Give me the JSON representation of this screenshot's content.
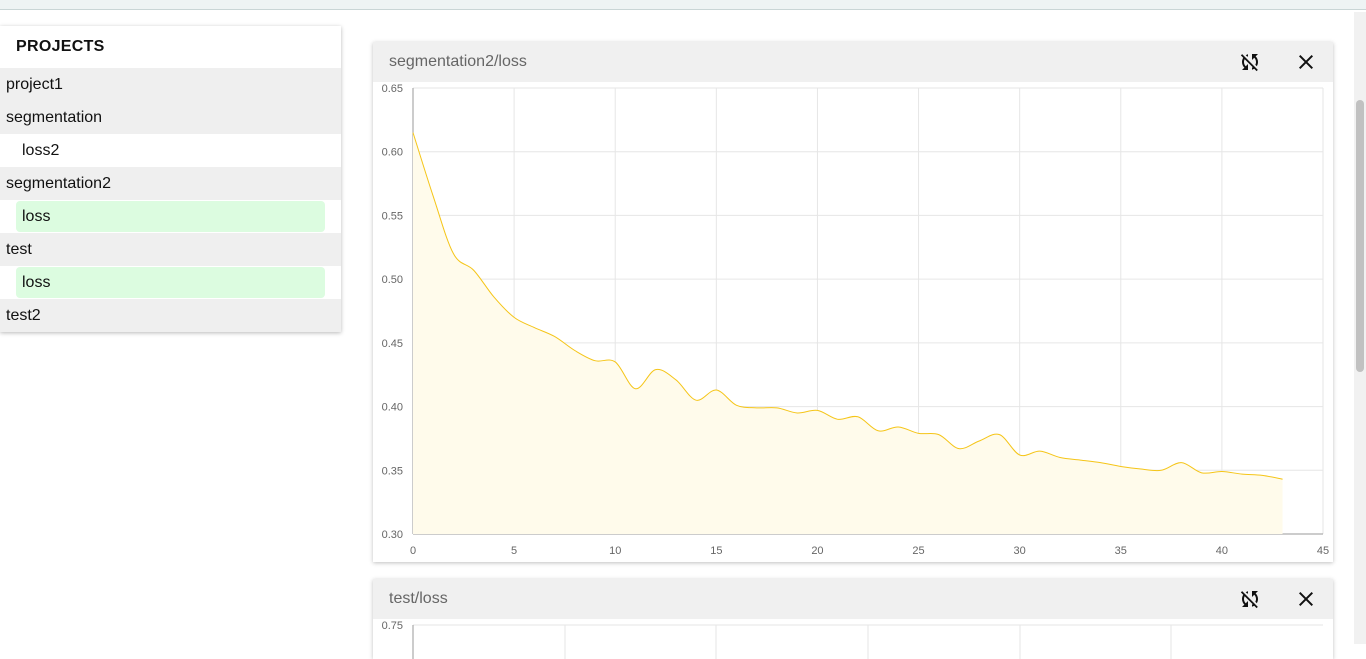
{
  "sidebar": {
    "title": "PROJECTS",
    "rows": [
      {
        "kind": "project",
        "label": "project1"
      },
      {
        "kind": "project",
        "label": "segmentation"
      },
      {
        "kind": "run",
        "label": "loss2",
        "selected": false
      },
      {
        "kind": "project",
        "label": "segmentation2"
      },
      {
        "kind": "run",
        "label": "loss",
        "selected": true
      },
      {
        "kind": "project",
        "label": "test"
      },
      {
        "kind": "run",
        "label": "loss",
        "selected": true
      },
      {
        "kind": "project",
        "label": "test2"
      }
    ]
  },
  "cards": [
    {
      "title": "segmentation2/loss",
      "refresh_icon": "sync-disabled-icon",
      "close_icon": "close-icon"
    },
    {
      "title": "test/loss",
      "refresh_icon": "sync-disabled-icon",
      "close_icon": "close-icon"
    }
  ],
  "colors": {
    "line": "#f5c518",
    "fill": "#fffbeb",
    "selected_run": "#dcfce0",
    "project_row": "#efefef"
  },
  "chart_data": [
    {
      "type": "area",
      "title": "segmentation2/loss",
      "xlabel": "",
      "ylabel": "",
      "xlim": [
        0,
        45
      ],
      "ylim": [
        0.3,
        0.65
      ],
      "x_ticks": [
        0,
        5,
        10,
        15,
        20,
        25,
        30,
        35,
        40,
        45
      ],
      "x_tick_labels": [
        "0",
        "5",
        "10",
        "15",
        "20",
        "25",
        "30",
        "35",
        "40",
        "45"
      ],
      "y_ticks": [
        0.3,
        0.35,
        0.4,
        0.45,
        0.5,
        0.55,
        0.6,
        0.65
      ],
      "y_tick_labels": [
        "0.30",
        "0.35",
        "0.40",
        "0.45",
        "0.50",
        "0.55",
        "0.60",
        "0.65"
      ],
      "grid": true,
      "series": [
        {
          "x": [
            0,
            1,
            2,
            3,
            4,
            5,
            6,
            7,
            8,
            9,
            10,
            11,
            12,
            13,
            14,
            15,
            16,
            17,
            18,
            19,
            20,
            21,
            22,
            23,
            24,
            25,
            26,
            27,
            28,
            29,
            30,
            31,
            32,
            33,
            34,
            35,
            36,
            37,
            38,
            39,
            40,
            41,
            42,
            43
          ],
          "values": [
            0.615,
            0.565,
            0.52,
            0.507,
            0.486,
            0.47,
            0.462,
            0.455,
            0.444,
            0.436,
            0.435,
            0.414,
            0.429,
            0.421,
            0.405,
            0.413,
            0.401,
            0.399,
            0.399,
            0.395,
            0.397,
            0.39,
            0.392,
            0.381,
            0.384,
            0.379,
            0.378,
            0.367,
            0.373,
            0.378,
            0.362,
            0.365,
            0.36,
            0.358,
            0.356,
            0.353,
            0.351,
            0.35,
            0.356,
            0.348,
            0.349,
            0.347,
            0.346,
            0.343
          ]
        }
      ]
    },
    {
      "type": "area",
      "title": "test/loss",
      "xlabel": "",
      "ylabel": "",
      "y_tick_labels_visible": [
        "0.75"
      ],
      "ylim_top": 0.75,
      "grid": true
    }
  ]
}
